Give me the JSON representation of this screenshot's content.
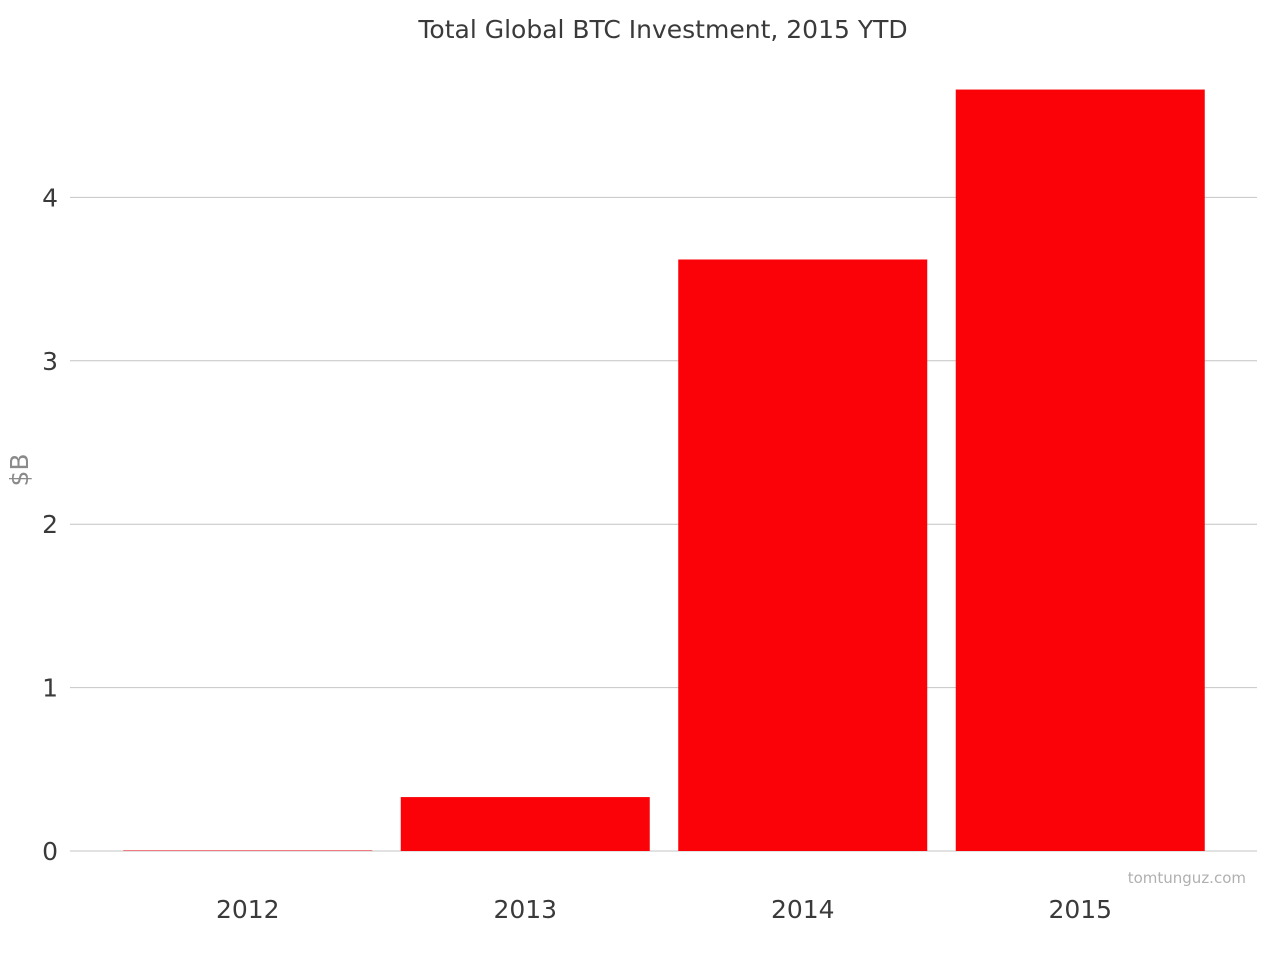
{
  "chart_data": {
    "type": "bar",
    "title": "Total Global BTC Investment, 2015 YTD",
    "xlabel": "",
    "ylabel": "$B",
    "categories": [
      "2012",
      "2013",
      "2014",
      "2015"
    ],
    "values": [
      0.002,
      0.33,
      3.62,
      4.66
    ],
    "yticks": [
      0,
      1,
      2,
      3,
      4
    ],
    "ylim": [
      0,
      4.9
    ],
    "grid": true,
    "legend": "none",
    "bar_color": "#fa0208",
    "grid_color": "#c4c4c4",
    "text_color": "#3a3a3a"
  },
  "watermark": "tomtunguz.com"
}
